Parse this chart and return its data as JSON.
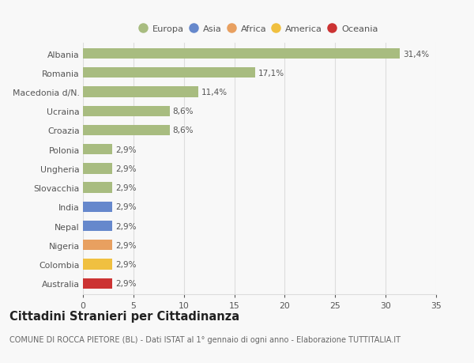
{
  "categories": [
    "Australia",
    "Colombia",
    "Nigeria",
    "Nepal",
    "India",
    "Slovacchia",
    "Ungheria",
    "Polonia",
    "Croazia",
    "Ucraina",
    "Macedonia d/N.",
    "Romania",
    "Albania"
  ],
  "values": [
    2.9,
    2.9,
    2.9,
    2.9,
    2.9,
    2.9,
    2.9,
    2.9,
    8.6,
    8.6,
    11.4,
    17.1,
    31.4
  ],
  "labels": [
    "2,9%",
    "2,9%",
    "2,9%",
    "2,9%",
    "2,9%",
    "2,9%",
    "2,9%",
    "2,9%",
    "8,6%",
    "8,6%",
    "11,4%",
    "17,1%",
    "31,4%"
  ],
  "colors": [
    "#cc3333",
    "#f0c040",
    "#e8a060",
    "#6688cc",
    "#6688cc",
    "#a8bc80",
    "#a8bc80",
    "#a8bc80",
    "#a8bc80",
    "#a8bc80",
    "#a8bc80",
    "#a8bc80",
    "#a8bc80"
  ],
  "legend": [
    {
      "label": "Europa",
      "color": "#a8bc80"
    },
    {
      "label": "Asia",
      "color": "#6688cc"
    },
    {
      "label": "Africa",
      "color": "#e8a060"
    },
    {
      "label": "America",
      "color": "#f0c040"
    },
    {
      "label": "Oceania",
      "color": "#cc3333"
    }
  ],
  "xlim": [
    0,
    35
  ],
  "xticks": [
    0,
    5,
    10,
    15,
    20,
    25,
    30,
    35
  ],
  "title": "Cittadini Stranieri per Cittadinanza",
  "subtitle": "COMUNE DI ROCCA PIETORE (BL) - Dati ISTAT al 1° gennaio di ogni anno - Elaborazione TUTTITALIA.IT",
  "bg_color": "#f8f8f8",
  "plot_bg_color": "#f8f8f8",
  "grid_color": "#dddddd",
  "bar_height": 0.55,
  "label_fontsize": 7.5,
  "ytick_fontsize": 7.8,
  "xtick_fontsize": 7.8,
  "title_fontsize": 10.5,
  "subtitle_fontsize": 7.0
}
